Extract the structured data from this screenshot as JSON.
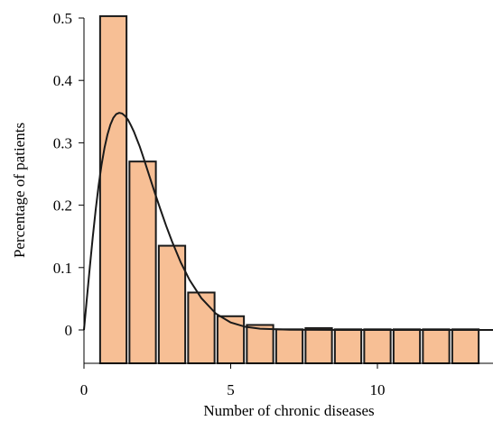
{
  "chart_data": {
    "type": "bar",
    "xlabel": "Number of chronic diseases",
    "ylabel": "Percentage of patients",
    "xlim": [
      0,
      14
    ],
    "ylim": [
      -0.05,
      0.51
    ],
    "x_ticks": [
      0,
      5,
      10
    ],
    "y_ticks": [
      0,
      0.1,
      0.2,
      0.3,
      0.4,
      0.5
    ],
    "x_tick_labels": [
      "0",
      "5",
      "10"
    ],
    "y_tick_labels": [
      "0",
      "0.1",
      "0.2",
      "0.3",
      "0.4",
      "0.5"
    ],
    "bar_width": 0.9,
    "grid": false,
    "bars": [
      {
        "x": 1,
        "value": 0.503
      },
      {
        "x": 2,
        "value": 0.27
      },
      {
        "x": 3,
        "value": 0.135
      },
      {
        "x": 4,
        "value": 0.06
      },
      {
        "x": 5,
        "value": 0.022
      },
      {
        "x": 6,
        "value": 0.008
      },
      {
        "x": 7,
        "value": 0.001
      },
      {
        "x": 8,
        "value": 0.003
      },
      {
        "x": 9,
        "value": 0.001
      },
      {
        "x": 10,
        "value": 0.001
      },
      {
        "x": 11,
        "value": 0.001
      },
      {
        "x": 12,
        "value": 0.001
      },
      {
        "x": 13,
        "value": 0.001
      }
    ],
    "fit_curve": {
      "x": [
        0,
        0.1,
        0.2,
        0.3,
        0.4,
        0.5,
        0.6,
        0.7,
        0.8,
        0.9,
        1.0,
        1.1,
        1.2,
        1.3,
        1.4,
        1.5,
        1.6,
        1.7,
        1.8,
        1.9,
        2.0,
        2.2,
        2.4,
        2.6,
        2.8,
        3.0,
        3.3,
        3.6,
        4.0,
        4.5,
        5.0,
        5.5,
        6.0,
        7.0,
        8.0,
        10.0,
        12.0,
        14.0
      ],
      "y": [
        0.0,
        0.051,
        0.101,
        0.149,
        0.193,
        0.232,
        0.265,
        0.292,
        0.313,
        0.329,
        0.34,
        0.346,
        0.348,
        0.347,
        0.343,
        0.337,
        0.328,
        0.318,
        0.306,
        0.294,
        0.28,
        0.251,
        0.222,
        0.194,
        0.167,
        0.142,
        0.108,
        0.08,
        0.051,
        0.026,
        0.012,
        0.005,
        0.002,
        0.0004,
        0.0001,
        0.0,
        0.0,
        0.0
      ]
    },
    "colors": {
      "bar_fill": "#f7bf95",
      "bar_stroke": "#1a1a1a",
      "curve": "#1a1a1a",
      "axis": "#000000"
    }
  }
}
